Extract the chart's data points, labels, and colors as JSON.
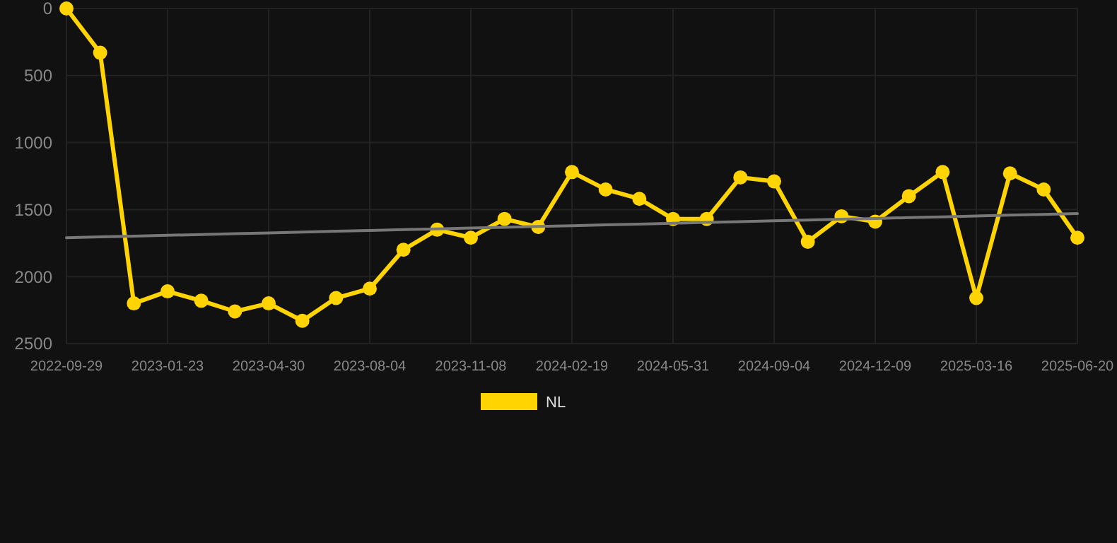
{
  "chart_data": {
    "type": "line",
    "categories": [
      "2022-09-29",
      null,
      null,
      "2023-01-23",
      null,
      null,
      "2023-04-30",
      null,
      null,
      "2023-08-04",
      null,
      null,
      "2023-11-08",
      null,
      null,
      "2024-02-19",
      null,
      null,
      "2024-05-31",
      null,
      null,
      "2024-09-04",
      null,
      null,
      "2024-12-09",
      null,
      null,
      "2025-03-16",
      null,
      null,
      "2025-06-20"
    ],
    "series": [
      {
        "name": "NL",
        "color": "#ffd400",
        "marker": "circle",
        "values": [
          0,
          330,
          2200,
          2110,
          2180,
          2260,
          2200,
          2330,
          2160,
          2090,
          1800,
          1650,
          1710,
          1570,
          1630,
          1220,
          1350,
          1420,
          1570,
          1570,
          1260,
          1290,
          1740,
          1550,
          1590,
          1400,
          1220,
          2160,
          1230,
          1350,
          1710
        ]
      },
      {
        "type": "line",
        "color": "#777777",
        "marker": "none",
        "values": [
          1710,
          1704,
          1698,
          1692,
          1686,
          1680,
          1674,
          1668,
          1662,
          1656,
          1650,
          1644,
          1638,
          1632,
          1626,
          1620,
          1614,
          1608,
          1602,
          1596,
          1590,
          1584,
          1578,
          1572,
          1566,
          1560,
          1554,
          1548,
          1542,
          1536,
          1530
        ]
      }
    ],
    "ylim": [
      2500,
      0
    ],
    "yticks": [
      0,
      500,
      1000,
      1500,
      2000,
      2500
    ],
    "grid": true,
    "legend": "bottom"
  }
}
